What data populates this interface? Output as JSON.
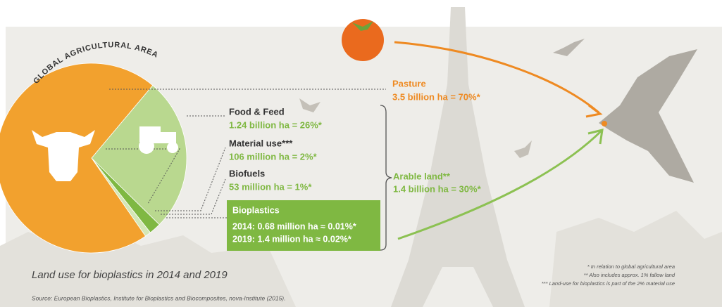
{
  "chart_data": {
    "type": "pie",
    "title": "GLOBAL AGRICULTURAL AREA",
    "subtitle": "Land use for bioplastics in 2014 and 2019",
    "source": "Source: European Bioplastics, Institute for Bioplastics and Biocomposites, nova-Institute (2015).",
    "categories": [
      "Food & Feed",
      "Material use***",
      "Biofuels",
      "Pasture"
    ],
    "values": [
      26,
      2,
      1,
      70
    ],
    "value_labels": [
      "1.24 billion ha = 26%*",
      "106 million ha = 2%*",
      "53 million ha = 1%*",
      "3.5 billion ha = 70%*"
    ],
    "colors": [
      "#b9d88f",
      "#7fb842",
      "#d4e7b6",
      "#f2a12e"
    ],
    "group": {
      "label": "Arable land**",
      "value_label": "1.4 billion ha = 30%*"
    },
    "bioplastics": {
      "title": "Bioplastics",
      "lines": [
        "2014: 0.68 million ha ≈ 0.01%*",
        "2019: 1.4 million ha ≈ 0.02%*"
      ]
    },
    "footnotes": [
      "* In relation to global agricultural area",
      "** Also includes approx. 1% fallow land",
      "*** Land-use for bioplastics is part of the 2% material use"
    ]
  }
}
